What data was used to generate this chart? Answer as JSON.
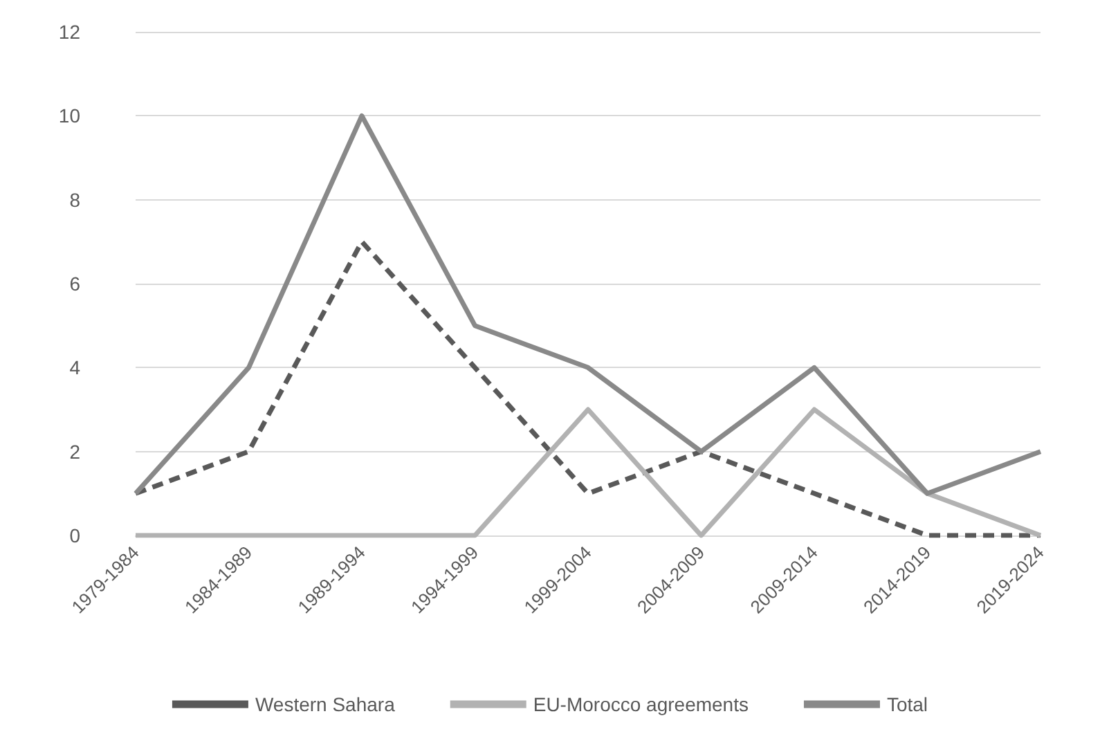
{
  "chart_data": {
    "type": "line",
    "categories": [
      "1979-1984",
      "1984-1989",
      "1989-1994",
      "1994-1999",
      "1999-2004",
      "2004-2009",
      "2009-2014",
      "2014-2019",
      "2019-2024"
    ],
    "series": [
      {
        "name": "Western Sahara",
        "color": "#595959",
        "line_style": "dashed",
        "values": [
          1,
          2,
          7,
          4,
          1,
          2,
          1,
          0,
          0
        ]
      },
      {
        "name": "EU-Morocco agreements",
        "color": "#b2b2b2",
        "line_style": "solid",
        "values": [
          0,
          0,
          0,
          0,
          3,
          0,
          3,
          1,
          0
        ]
      },
      {
        "name": "Total",
        "color": "#898989",
        "line_style": "solid",
        "values": [
          1,
          4,
          10,
          5,
          4,
          2,
          4,
          1,
          2
        ]
      }
    ],
    "ylim": [
      0,
      12
    ],
    "yticks": [
      0,
      2,
      4,
      6,
      8,
      10,
      12
    ],
    "grid": "y",
    "legend": "bottom",
    "marker": "none"
  }
}
